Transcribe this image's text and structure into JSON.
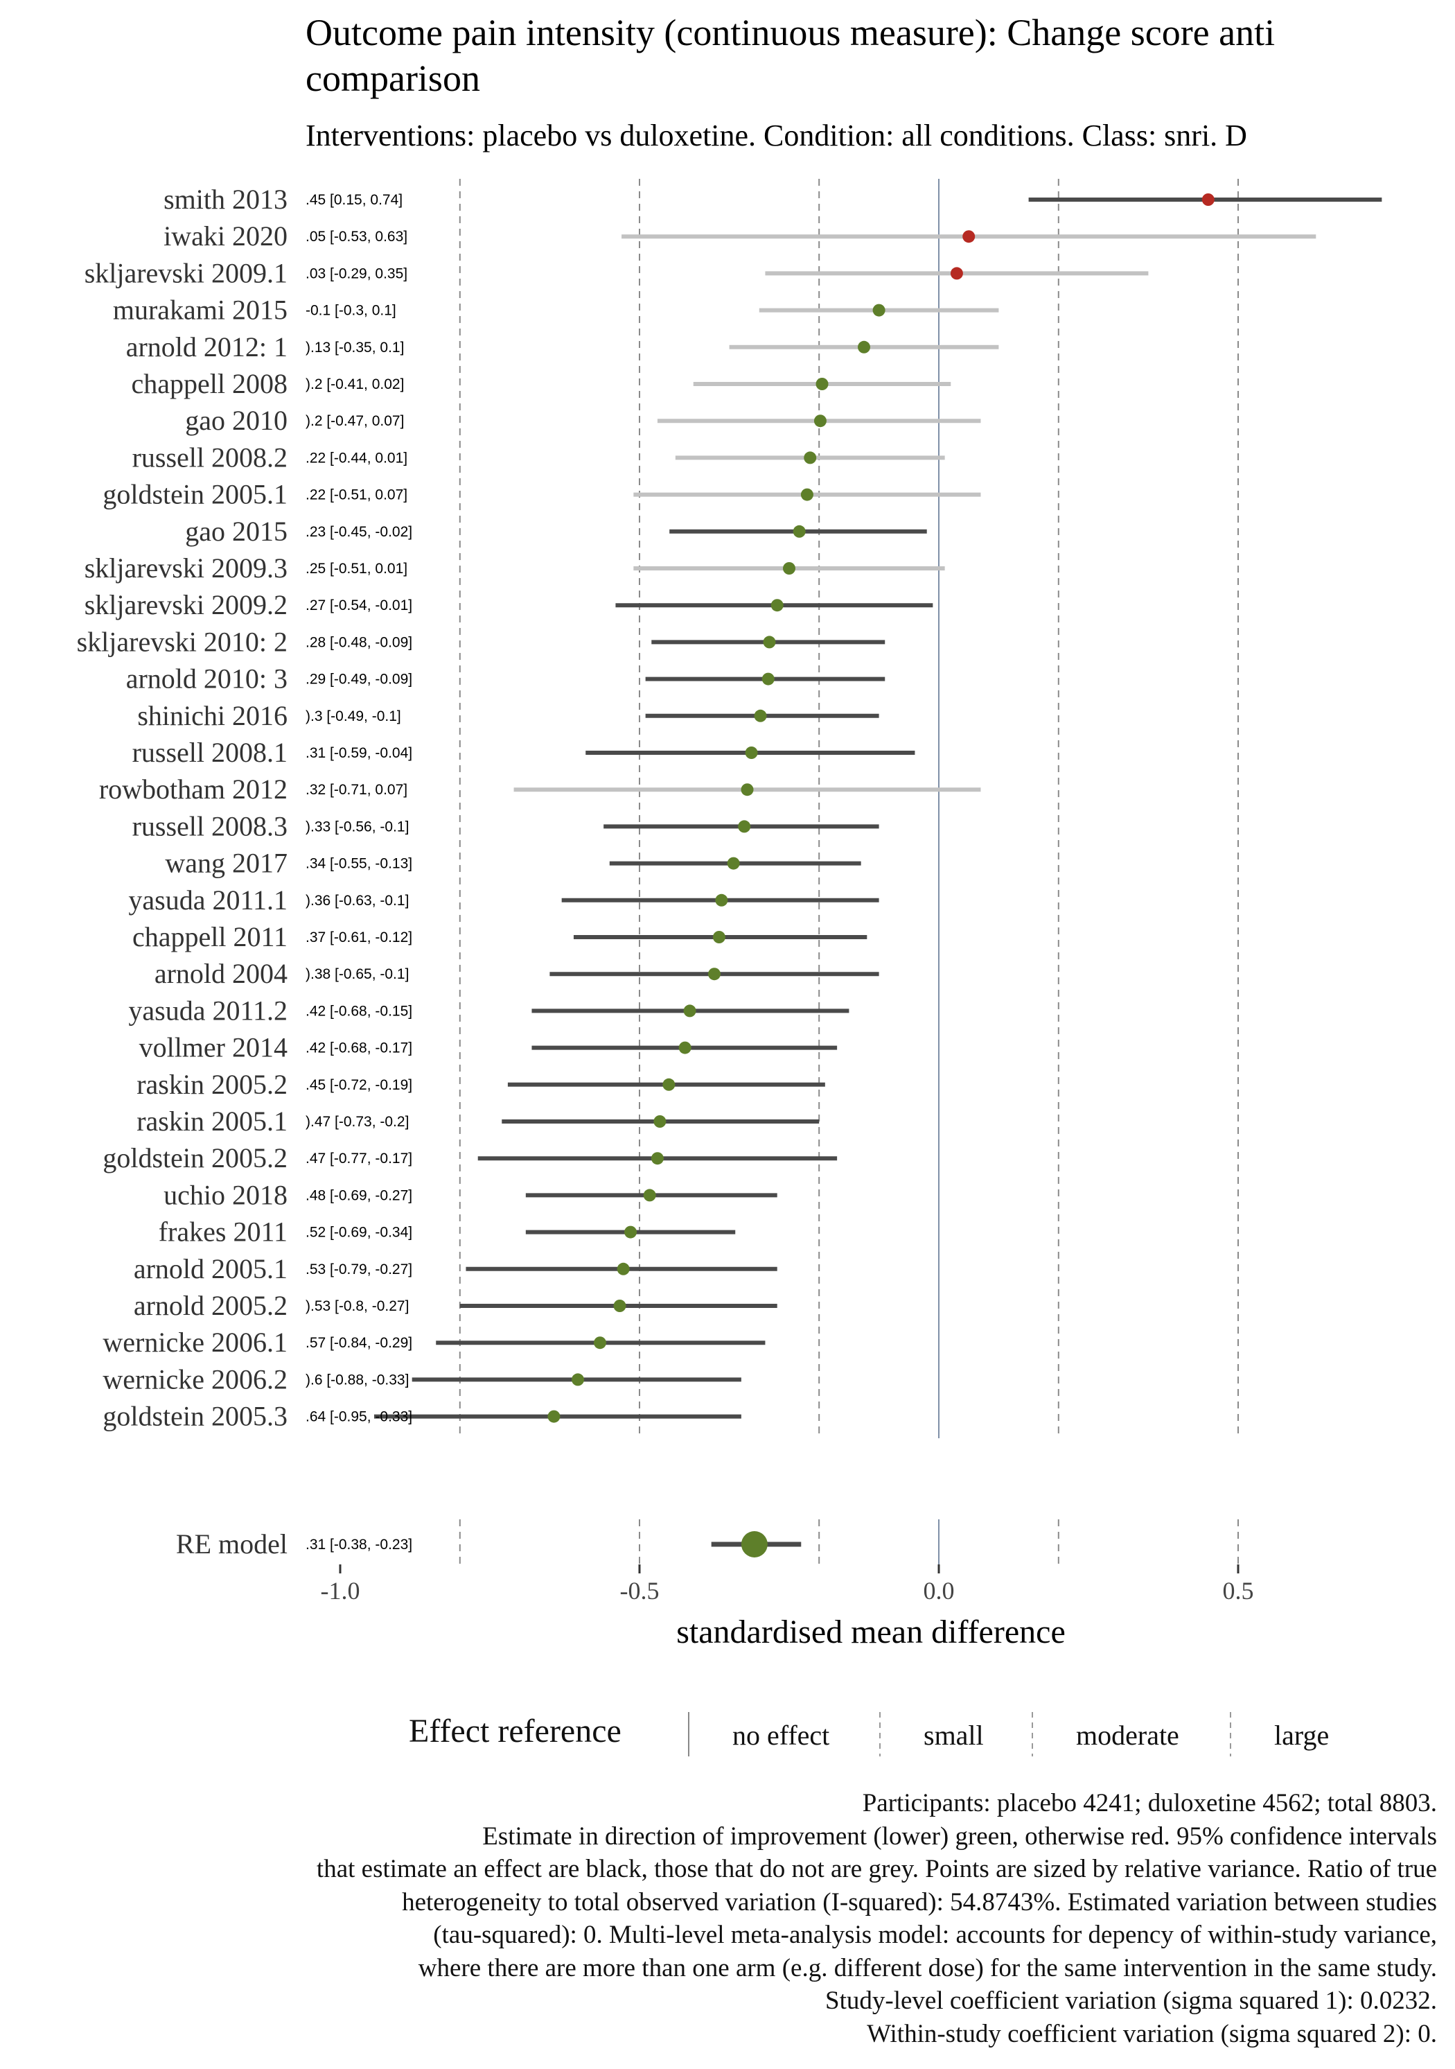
{
  "title": "Outcome pain intensity (continuous measure): Change score anti\ncomparison",
  "subtitle": "Interventions: placebo vs duloxetine. Condition: all conditions. Class: snri. D",
  "colors": {
    "improve": "#5e7f2a",
    "worse": "#b62a22",
    "ci_effect": "#4a4a4a",
    "ci_no_effect": "#c2c2c2",
    "ref_line": "#7f90a8",
    "dash_line": "#8a8a8a"
  },
  "chart_data": {
    "type": "forest",
    "xlabel": "standardised mean difference",
    "xlim": [
      -1.05,
      0.86
    ],
    "xticks": [
      -1.0,
      -0.5,
      0.0,
      0.5
    ],
    "xtick_labels": [
      "-1.0",
      "-0.5",
      "0.0",
      "0.5"
    ],
    "reference_lines": [
      {
        "x": 0.0,
        "kind": "no effect"
      },
      {
        "x": -0.2,
        "kind": "small"
      },
      {
        "x": 0.2,
        "kind": "small"
      },
      {
        "x": -0.5,
        "kind": "moderate"
      },
      {
        "x": 0.5,
        "kind": "large"
      },
      {
        "x": -0.8,
        "kind": "large"
      }
    ],
    "studies": [
      {
        "label": "smith 2013",
        "est_label": ".45 [0.15, 0.74]",
        "est": 0.45,
        "lo": 0.15,
        "hi": 0.74,
        "effect": true
      },
      {
        "label": "iwaki 2020",
        "est_label": ".05 [-0.53, 0.63]",
        "est": 0.05,
        "lo": -0.53,
        "hi": 0.63,
        "effect": false
      },
      {
        "label": "skljarevski 2009.1",
        "est_label": ".03 [-0.29, 0.35]",
        "est": 0.03,
        "lo": -0.29,
        "hi": 0.35,
        "effect": false
      },
      {
        "label": "murakami 2015",
        "est_label": "-0.1 [-0.3, 0.1]",
        "est": -0.1,
        "lo": -0.3,
        "hi": 0.1,
        "effect": false
      },
      {
        "label": "arnold 2012: 1",
        "est_label": ").13 [-0.35, 0.1]",
        "est": -0.125,
        "lo": -0.35,
        "hi": 0.1,
        "effect": false
      },
      {
        "label": "chappell 2008",
        "est_label": ").2 [-0.41, 0.02]",
        "est": -0.195,
        "lo": -0.41,
        "hi": 0.02,
        "effect": false
      },
      {
        "label": "gao 2010",
        "est_label": ").2 [-0.47, 0.07]",
        "est": -0.198,
        "lo": -0.47,
        "hi": 0.07,
        "effect": false
      },
      {
        "label": "russell 2008.2",
        "est_label": ".22 [-0.44, 0.01]",
        "est": -0.215,
        "lo": -0.44,
        "hi": 0.01,
        "effect": false
      },
      {
        "label": "goldstein 2005.1",
        "est_label": ".22 [-0.51, 0.07]",
        "est": -0.22,
        "lo": -0.51,
        "hi": 0.07,
        "effect": false
      },
      {
        "label": "gao 2015",
        "est_label": ".23 [-0.45, -0.02]",
        "est": -0.233,
        "lo": -0.45,
        "hi": -0.02,
        "effect": true
      },
      {
        "label": "skljarevski 2009.3",
        "est_label": ".25 [-0.51, 0.01]",
        "est": -0.25,
        "lo": -0.51,
        "hi": 0.01,
        "effect": false
      },
      {
        "label": "skljarevski 2009.2",
        "est_label": ".27 [-0.54, -0.01]",
        "est": -0.27,
        "lo": -0.54,
        "hi": -0.01,
        "effect": true
      },
      {
        "label": "skljarevski 2010: 2",
        "est_label": ".28 [-0.48, -0.09]",
        "est": -0.283,
        "lo": -0.48,
        "hi": -0.09,
        "effect": true
      },
      {
        "label": "arnold 2010: 3",
        "est_label": ".29 [-0.49, -0.09]",
        "est": -0.285,
        "lo": -0.49,
        "hi": -0.09,
        "effect": true
      },
      {
        "label": "shinichi 2016",
        "est_label": ").3 [-0.49, -0.1]",
        "est": -0.298,
        "lo": -0.49,
        "hi": -0.1,
        "effect": true
      },
      {
        "label": "russell 2008.1",
        "est_label": ".31 [-0.59, -0.04]",
        "est": -0.313,
        "lo": -0.59,
        "hi": -0.04,
        "effect": true
      },
      {
        "label": "rowbotham 2012",
        "est_label": ".32 [-0.71, 0.07]",
        "est": -0.32,
        "lo": -0.71,
        "hi": 0.07,
        "effect": false
      },
      {
        "label": "russell 2008.3",
        "est_label": ").33 [-0.56, -0.1]",
        "est": -0.325,
        "lo": -0.56,
        "hi": -0.1,
        "effect": true
      },
      {
        "label": "wang 2017",
        "est_label": ".34 [-0.55, -0.13]",
        "est": -0.343,
        "lo": -0.55,
        "hi": -0.13,
        "effect": true
      },
      {
        "label": "yasuda 2011.1",
        "est_label": ").36 [-0.63, -0.1]",
        "est": -0.363,
        "lo": -0.63,
        "hi": -0.1,
        "effect": true
      },
      {
        "label": "chappell 2011",
        "est_label": ".37 [-0.61, -0.12]",
        "est": -0.367,
        "lo": -0.61,
        "hi": -0.12,
        "effect": true
      },
      {
        "label": "arnold 2004",
        "est_label": ").38 [-0.65, -0.1]",
        "est": -0.375,
        "lo": -0.65,
        "hi": -0.1,
        "effect": true
      },
      {
        "label": "yasuda 2011.2",
        "est_label": ".42 [-0.68, -0.15]",
        "est": -0.416,
        "lo": -0.68,
        "hi": -0.15,
        "effect": true
      },
      {
        "label": "vollmer 2014",
        "est_label": ".42 [-0.68, -0.17]",
        "est": -0.424,
        "lo": -0.68,
        "hi": -0.17,
        "effect": true
      },
      {
        "label": "raskin 2005.2",
        "est_label": ".45 [-0.72, -0.19]",
        "est": -0.451,
        "lo": -0.72,
        "hi": -0.19,
        "effect": true
      },
      {
        "label": "raskin 2005.1",
        "est_label": ").47 [-0.73, -0.2]",
        "est": -0.466,
        "lo": -0.73,
        "hi": -0.2,
        "effect": true
      },
      {
        "label": "goldstein 2005.2",
        "est_label": ".47 [-0.77, -0.17]",
        "est": -0.47,
        "lo": -0.77,
        "hi": -0.17,
        "effect": true
      },
      {
        "label": "uchio 2018",
        "est_label": ".48 [-0.69, -0.27]",
        "est": -0.483,
        "lo": -0.69,
        "hi": -0.27,
        "effect": true
      },
      {
        "label": "frakes 2011",
        "est_label": ".52 [-0.69, -0.34]",
        "est": -0.515,
        "lo": -0.69,
        "hi": -0.34,
        "effect": true
      },
      {
        "label": "arnold 2005.1",
        "est_label": ".53 [-0.79, -0.27]",
        "est": -0.527,
        "lo": -0.79,
        "hi": -0.27,
        "effect": true
      },
      {
        "label": "arnold 2005.2",
        "est_label": ").53 [-0.8, -0.27]",
        "est": -0.533,
        "lo": -0.8,
        "hi": -0.27,
        "effect": true
      },
      {
        "label": "wernicke 2006.1",
        "est_label": ".57 [-0.84, -0.29]",
        "est": -0.566,
        "lo": -0.84,
        "hi": -0.29,
        "effect": true
      },
      {
        "label": "wernicke 2006.2",
        "est_label": ").6 [-0.88, -0.33]",
        "est": -0.603,
        "lo": -0.88,
        "hi": -0.33,
        "effect": true
      },
      {
        "label": "goldstein 2005.3",
        "est_label": ".64 [-0.95, -0.33]",
        "est": -0.643,
        "lo": -0.95,
        "hi": -0.33,
        "effect": true
      }
    ],
    "pooled": {
      "label": "RE model",
      "est_label": ".31 [-0.38, -0.23]",
      "est": -0.308,
      "lo": -0.38,
      "hi": -0.23
    }
  },
  "legend": {
    "title": "Effect reference",
    "items": [
      "no effect",
      "small",
      "moderate",
      "large"
    ]
  },
  "caption": [
    "Participants: placebo 4241; duloxetine 4562; total 8803.",
    "Estimate in direction of improvement (lower) green, otherwise red. 95% confidence intervals",
    "that estimate an effect are black, those that do not are grey. Points are sized by relative variance. Ratio of true",
    "heterogeneity to total observed variation (I-squared): 54.8743%. Estimated variation between studies",
    "(tau-squared): 0. Multi-level meta-analysis model: accounts for depency of within-study variance,",
    "where there are more than one arm (e.g. different dose) for the same intervention in the same study.",
    "Study-level coefficient variation (sigma squared 1): 0.0232.",
    "Within-study coefficient variation (sigma squared 2): 0."
  ]
}
